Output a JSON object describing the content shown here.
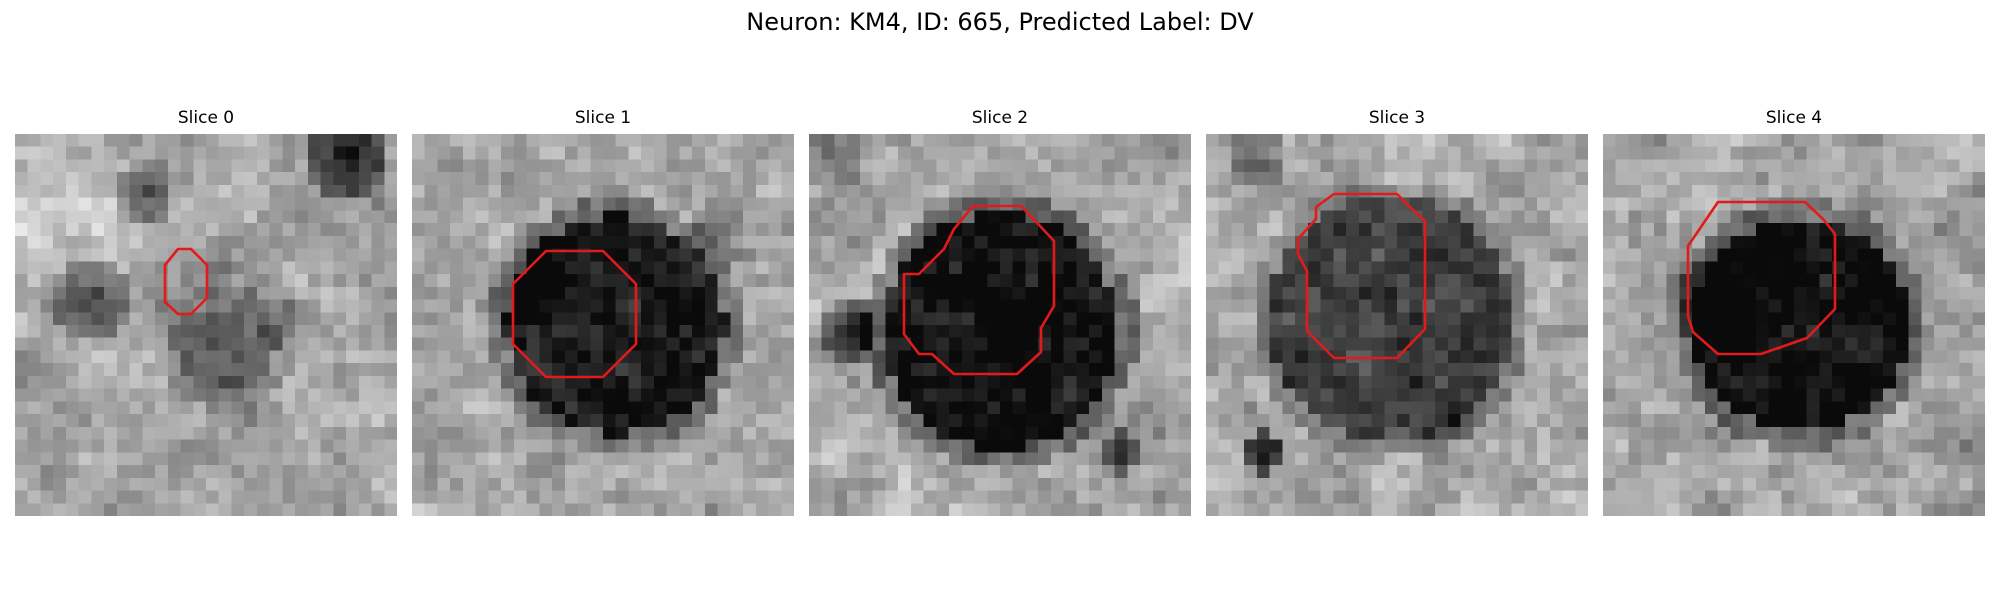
{
  "figure": {
    "title": "Neuron: KM4, ID: 665, Predicted Label: DV"
  },
  "slices": [
    {
      "label": "Slice 0"
    },
    {
      "label": "Slice 1"
    },
    {
      "label": "Slice 2"
    },
    {
      "label": "Slice 3"
    },
    {
      "label": "Slice 4"
    }
  ],
  "colors": {
    "contour": "#e31a1c",
    "background": "#ffffff"
  }
}
